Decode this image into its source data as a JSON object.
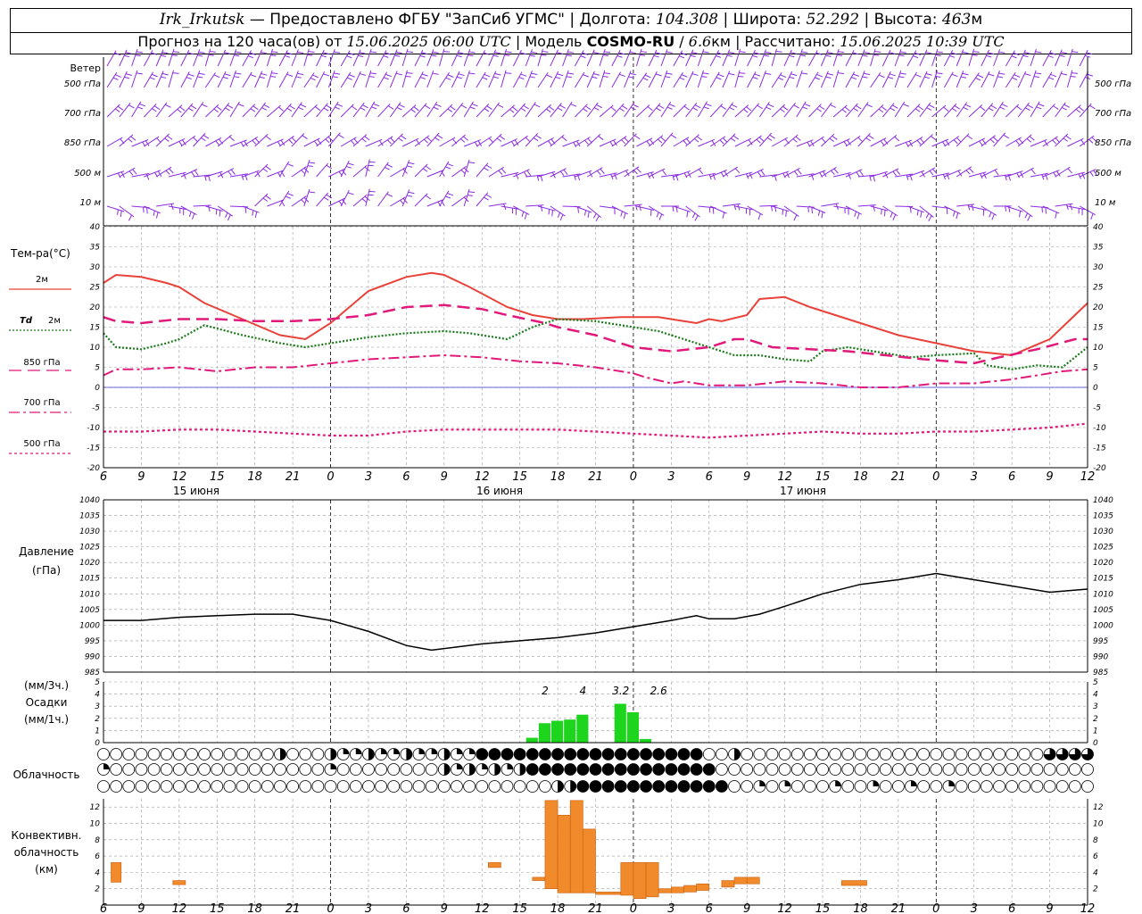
{
  "header": {
    "station": "Irk_Irkutsk",
    "provider": "Предоставлено ФГБУ \"ЗапСиб УГМС\"",
    "lon_label": "Долгота:",
    "lon_value": "104.308",
    "lat_label": "Широта:",
    "lat_value": "52.292",
    "alt_label": "Высота:",
    "alt_value": "463",
    "alt_unit": "м",
    "forecast_prefix": "Прогноз на 120 часа(ов) от",
    "forecast_start": "15.06.2025 06:00 UTC",
    "model_label": "Модель",
    "model_name": "COSMO-RU",
    "model_res": "6.6",
    "model_res_unit": "км",
    "calc_label": "Рассчитано:",
    "calc_time": "15.06.2025 10:39 UTC"
  },
  "labels": {
    "wind": "Ветер",
    "wind_levels": [
      "500 гПа",
      "700 гПа",
      "850 гПа",
      "500  м",
      "10   м"
    ],
    "temp_title": "Тем-ра(°С)",
    "temp_2m": "2м",
    "td_2m_a": "Td",
    "td_2m_b": "2м",
    "t850": "850 гПа",
    "t700": "700 гПа",
    "t500": "500 гПа",
    "pressure_a": "Давление",
    "pressure_b": "(гПа)",
    "precip_a": "(мм/3ч.)",
    "precip_b": "Осадки",
    "precip_c": "(мм/1ч.)",
    "cloud": "Облачность",
    "conv_a": "Конвективн.",
    "conv_b": "облачность",
    "conv_c": "(км)",
    "days": [
      "15 июня",
      "16 июня",
      "17 июня"
    ]
  },
  "colors": {
    "wind": "#8a2be2",
    "t2m": "#e8423a",
    "td2m": "#1a7a1a",
    "t850": "#e0197a",
    "t700": "#e0197a",
    "t500": "#e0197a",
    "zero": "#3333cc",
    "precip": "#1ed51e",
    "conv": "#f08a2a"
  },
  "chart_data": [
    {
      "type": "line",
      "title": "Тем-ра(°С)",
      "x_hours": [
        6,
        9,
        12,
        15,
        18,
        21,
        24,
        27,
        30,
        33,
        36,
        39,
        42,
        45,
        48,
        51,
        54,
        57,
        60,
        63,
        66,
        69,
        72,
        75,
        78,
        81,
        84
      ],
      "x_tick_labels": [
        "6",
        "9",
        "12",
        "15",
        "18",
        "21",
        "0",
        "3",
        "6",
        "9",
        "12",
        "15",
        "18",
        "21",
        "0",
        "3",
        "6",
        "9",
        "12",
        "15",
        "18",
        "21",
        "0",
        "3",
        "6",
        "9",
        "12"
      ],
      "ylim": [
        -20,
        40
      ],
      "yticks": [
        -20,
        -15,
        -10,
        -5,
        0,
        5,
        10,
        15,
        20,
        25,
        30,
        35,
        40
      ],
      "series": [
        {
          "name": "2м",
          "x": [
            6,
            7,
            9,
            11,
            12,
            14,
            17,
            20,
            22,
            24,
            27,
            30,
            32,
            33,
            35,
            38,
            40,
            42,
            44,
            47,
            50,
            53,
            54,
            55,
            57,
            58,
            60,
            62,
            66,
            69,
            72,
            75,
            78,
            81,
            83,
            84
          ],
          "y": [
            26,
            28,
            27.5,
            26,
            25,
            21,
            17,
            13,
            12,
            16,
            24,
            27.5,
            28.5,
            28,
            25,
            20,
            18,
            17,
            17,
            17.5,
            17.5,
            16,
            17,
            16.5,
            18,
            22,
            22.5,
            20,
            16,
            13,
            11,
            9,
            8,
            12,
            18,
            21
          ]
        },
        {
          "name": "Td 2м",
          "x": [
            6,
            7,
            9,
            11,
            12,
            14,
            17,
            20,
            22,
            24,
            27,
            30,
            33,
            35,
            36,
            38,
            40,
            42,
            45,
            48,
            50,
            52,
            54,
            56,
            58,
            60,
            62,
            63,
            65,
            67,
            70,
            72,
            75,
            76,
            78,
            80,
            82,
            84
          ],
          "y": [
            13.5,
            10,
            9.5,
            11,
            12,
            15.5,
            13,
            11,
            10,
            11,
            12.5,
            13.5,
            14,
            13.5,
            13,
            12,
            15,
            17,
            16.5,
            15,
            14,
            12,
            10,
            8,
            8,
            7,
            6.5,
            9,
            10,
            9,
            7.5,
            8,
            8.5,
            5.5,
            4.5,
            5.5,
            5,
            10
          ]
        },
        {
          "name": "850 гПа",
          "x": [
            6,
            7,
            9,
            12,
            15,
            18,
            21,
            24,
            27,
            30,
            33,
            36,
            38,
            41,
            42,
            45,
            48,
            51,
            54,
            56,
            57,
            59,
            62,
            65,
            68,
            71,
            73,
            75,
            77,
            80,
            83,
            84
          ],
          "y": [
            17.5,
            16.5,
            16,
            17,
            17,
            16.5,
            16.5,
            17,
            18,
            20,
            20.5,
            19.5,
            18,
            16,
            15,
            13,
            10,
            9,
            10,
            12,
            12,
            10,
            9.5,
            9,
            8,
            7,
            6.5,
            6,
            7.5,
            9.5,
            12,
            12
          ]
        },
        {
          "name": "700 гПа",
          "x": [
            6,
            7,
            9,
            12,
            15,
            18,
            21,
            24,
            27,
            30,
            33,
            36,
            39,
            42,
            45,
            47,
            48,
            49,
            51,
            52,
            54,
            57,
            60,
            63,
            66,
            69,
            72,
            75,
            78,
            80,
            82,
            84
          ],
          "y": [
            3,
            4.5,
            4.5,
            5,
            4,
            5,
            5,
            6,
            7,
            7.5,
            8,
            7.5,
            6.5,
            6,
            5,
            4,
            3.5,
            2.5,
            1,
            1.5,
            0.5,
            0.5,
            1.5,
            1,
            0,
            0,
            1,
            1,
            2,
            3,
            4,
            4.5
          ]
        },
        {
          "name": "500 гПа",
          "x": [
            6,
            9,
            12,
            15,
            18,
            21,
            24,
            27,
            30,
            33,
            36,
            39,
            42,
            45,
            48,
            51,
            54,
            57,
            60,
            63,
            66,
            69,
            72,
            75,
            78,
            81,
            84
          ],
          "y": [
            -11,
            -11,
            -10.5,
            -10.5,
            -11,
            -11.5,
            -12,
            -12,
            -11,
            -10.5,
            -10.5,
            -10.5,
            -10.5,
            -11,
            -11.5,
            -12,
            -12.5,
            -12,
            -11.5,
            -11,
            -11.5,
            -11.5,
            -11,
            -11,
            -10.5,
            -10,
            -9
          ]
        }
      ]
    },
    {
      "type": "line",
      "title": "Давление",
      "ylabel": "(гПа)",
      "ylim": [
        985,
        1040
      ],
      "yticks": [
        985,
        990,
        995,
        1000,
        1005,
        1010,
        1015,
        1020,
        1025,
        1030,
        1035,
        1040
      ],
      "series": [
        {
          "name": "Давление",
          "x": [
            6,
            7,
            9,
            12,
            15,
            18,
            21,
            24,
            27,
            30,
            32,
            34,
            36,
            39,
            42,
            45,
            48,
            51,
            53,
            54,
            56,
            58,
            60,
            63,
            66,
            69,
            72,
            75,
            78,
            81,
            84
          ],
          "y": [
            1001.5,
            1001.5,
            1001.5,
            1002.5,
            1003,
            1003.5,
            1003.5,
            1001.5,
            998,
            993.5,
            992,
            993,
            994,
            995,
            996,
            997.5,
            999.5,
            1001.5,
            1003,
            1002,
            1002,
            1003.5,
            1006,
            1010,
            1013,
            1014.5,
            1016.5,
            1014.5,
            1012.5,
            1010.5,
            1011.5
          ]
        }
      ]
    },
    {
      "type": "bar",
      "title": "Осадки",
      "ylabel": "(мм/1ч.)",
      "ylim": [
        0,
        5
      ],
      "yticks": [
        0,
        1,
        2,
        3,
        4,
        5
      ],
      "x_hours": [
        40,
        41,
        42,
        43,
        44,
        47,
        48,
        49,
        50
      ],
      "values": [
        0.4,
        1.6,
        1.8,
        1.9,
        2.3,
        3.2,
        2.5,
        0.3,
        0
      ],
      "annotations": [
        {
          "x": 41,
          "text": "2"
        },
        {
          "x": 44,
          "text": "4"
        },
        {
          "x": 47,
          "text": "3.2"
        },
        {
          "x": 50,
          "text": "2.6"
        }
      ]
    },
    {
      "type": "bar",
      "title": "Конвективн. облачность",
      "ylabel": "(км)",
      "ylim": [
        0,
        13
      ],
      "yticks": [
        2,
        4,
        6,
        8,
        10,
        12
      ],
      "segments": [
        {
          "x0": 6.6,
          "x1": 7.4,
          "bottom": 2.8,
          "top": 5.2
        },
        {
          "x0": 11.5,
          "x1": 12.5,
          "bottom": 2.5,
          "top": 3
        },
        {
          "x0": 36.5,
          "x1": 37.5,
          "bottom": 4.6,
          "top": 5.2
        },
        {
          "x0": 40,
          "x1": 41,
          "bottom": 3,
          "top": 3.4
        },
        {
          "x0": 41,
          "x1": 42,
          "bottom": 2,
          "top": 12.8
        },
        {
          "x0": 42,
          "x1": 43,
          "bottom": 1.5,
          "top": 11
        },
        {
          "x0": 43,
          "x1": 44,
          "bottom": 1.5,
          "top": 12.8
        },
        {
          "x0": 44,
          "x1": 45,
          "bottom": 1.5,
          "top": 9.3
        },
        {
          "x0": 45,
          "x1": 47,
          "bottom": 1.3,
          "top": 1.6
        },
        {
          "x0": 47,
          "x1": 48,
          "bottom": 1.2,
          "top": 5.2
        },
        {
          "x0": 48,
          "x1": 49,
          "bottom": 0.8,
          "top": 5.2
        },
        {
          "x0": 49,
          "x1": 50,
          "bottom": 1,
          "top": 5.2
        },
        {
          "x0": 50,
          "x1": 51,
          "bottom": 1.5,
          "top": 2
        },
        {
          "x0": 51,
          "x1": 52,
          "bottom": 1.5,
          "top": 2.2
        },
        {
          "x0": 52,
          "x1": 53,
          "bottom": 1.6,
          "top": 2.4
        },
        {
          "x0": 53,
          "x1": 54,
          "bottom": 1.8,
          "top": 2.6
        },
        {
          "x0": 55,
          "x1": 56,
          "bottom": 2.2,
          "top": 3
        },
        {
          "x0": 56,
          "x1": 57,
          "bottom": 2.6,
          "top": 3.4
        },
        {
          "x0": 57,
          "x1": 58,
          "bottom": 2.6,
          "top": 3.4
        },
        {
          "x0": 64.5,
          "x1": 66.5,
          "bottom": 2.4,
          "top": 3
        }
      ]
    }
  ],
  "wind_levels_data": {
    "note_free": false,
    "rows": [
      "500 гПа",
      "700 гПа",
      "850 гПа",
      "500 м",
      "10 м"
    ]
  }
}
